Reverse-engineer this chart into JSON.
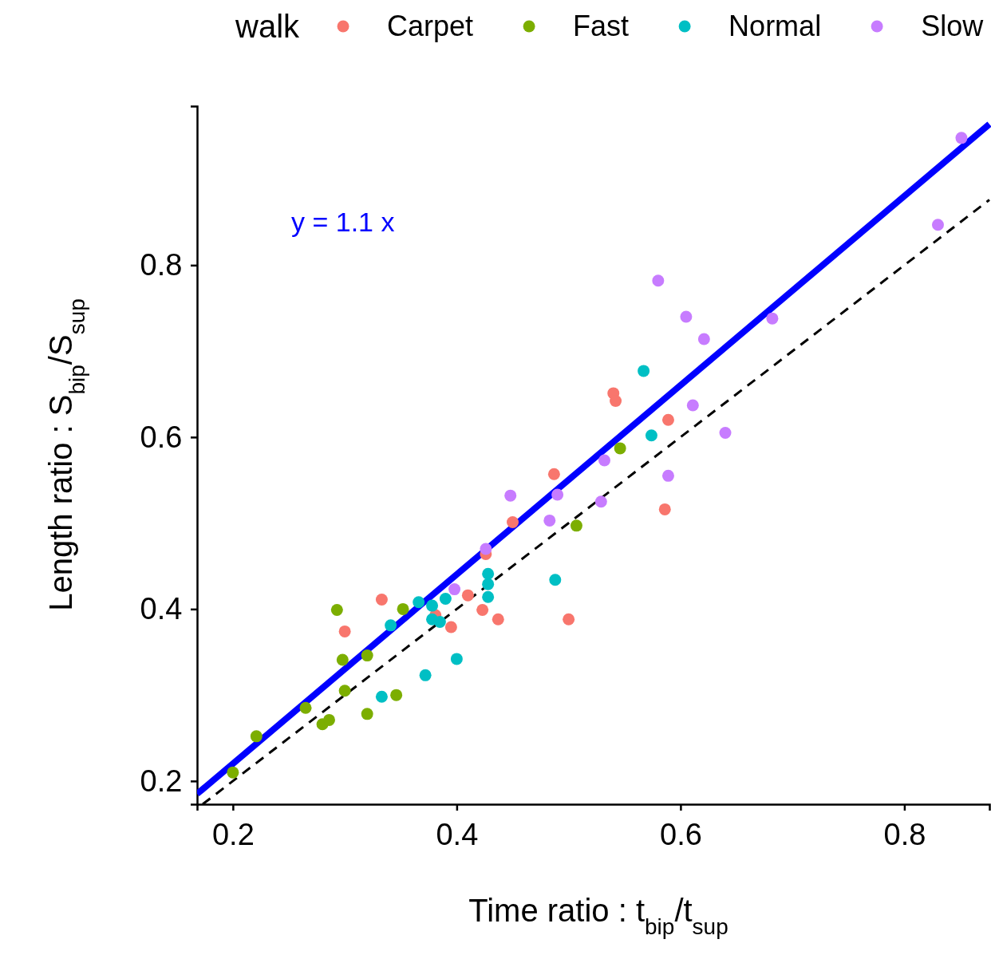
{
  "chart_data": {
    "type": "scatter",
    "xlabel": "Time ratio : t$_{bip}$/t$_{sup}$",
    "ylabel": "Length ratio : S$_{bip}$/S$_{sup}$",
    "legend_title": "walk",
    "legend": "top",
    "grid": false,
    "marker": "circle",
    "xlim": [
      0.168,
      0.876
    ],
    "ylim": [
      0.173,
      0.985
    ],
    "xticks": [
      0.2,
      0.4,
      0.6,
      0.8
    ],
    "yticks": [
      0.2,
      0.4,
      0.6,
      0.8
    ],
    "annotations": [
      "y = 1.1 x"
    ],
    "series": [
      {
        "name": "Carpet",
        "color": "#f8766d",
        "x": [
          0.3,
          0.333,
          0.381,
          0.395,
          0.41,
          0.423,
          0.426,
          0.437,
          0.45,
          0.487,
          0.5,
          0.54,
          0.542,
          0.589,
          0.586
        ],
        "values": [
          0.374,
          0.411,
          0.393,
          0.379,
          0.416,
          0.399,
          0.464,
          0.388,
          0.501,
          0.557,
          0.388,
          0.651,
          0.642,
          0.62,
          0.516
        ]
      },
      {
        "name": "Fast",
        "color": "#7cae00",
        "x": [
          0.2,
          0.221,
          0.265,
          0.28,
          0.286,
          0.293,
          0.298,
          0.3,
          0.32,
          0.32,
          0.346,
          0.352,
          0.507,
          0.546
        ],
        "values": [
          0.21,
          0.252,
          0.285,
          0.266,
          0.271,
          0.399,
          0.341,
          0.305,
          0.278,
          0.346,
          0.3,
          0.4,
          0.497,
          0.587
        ]
      },
      {
        "name": "Normal",
        "color": "#00bfc4",
        "x": [
          0.333,
          0.372,
          0.341,
          0.366,
          0.378,
          0.39,
          0.378,
          0.385,
          0.4,
          0.428,
          0.428,
          0.428,
          0.488,
          0.567,
          0.574
        ],
        "values": [
          0.298,
          0.323,
          0.381,
          0.408,
          0.404,
          0.412,
          0.388,
          0.385,
          0.342,
          0.441,
          0.429,
          0.414,
          0.434,
          0.677,
          0.602
        ]
      },
      {
        "name": "Slow",
        "color": "#c77cff",
        "x": [
          0.398,
          0.426,
          0.448,
          0.483,
          0.49,
          0.529,
          0.532,
          0.58,
          0.605,
          0.621,
          0.611,
          0.64,
          0.589,
          0.682,
          0.83,
          0.851
        ],
        "values": [
          0.423,
          0.47,
          0.532,
          0.503,
          0.533,
          0.525,
          0.573,
          0.782,
          0.74,
          0.714,
          0.637,
          0.605,
          0.555,
          0.738,
          0.847,
          0.948
        ]
      },
      {
        "type": "line",
        "color": "#000000",
        "line_style": "dashed",
        "marker": "none",
        "x": [
          0.173,
          0.876
        ],
        "values": [
          0.173,
          0.876
        ]
      },
      {
        "type": "line",
        "color": "#0000ff",
        "line_style": "solid",
        "marker": "none",
        "x": [
          0.168,
          0.876
        ],
        "values": [
          0.185,
          0.964
        ]
      }
    ]
  }
}
